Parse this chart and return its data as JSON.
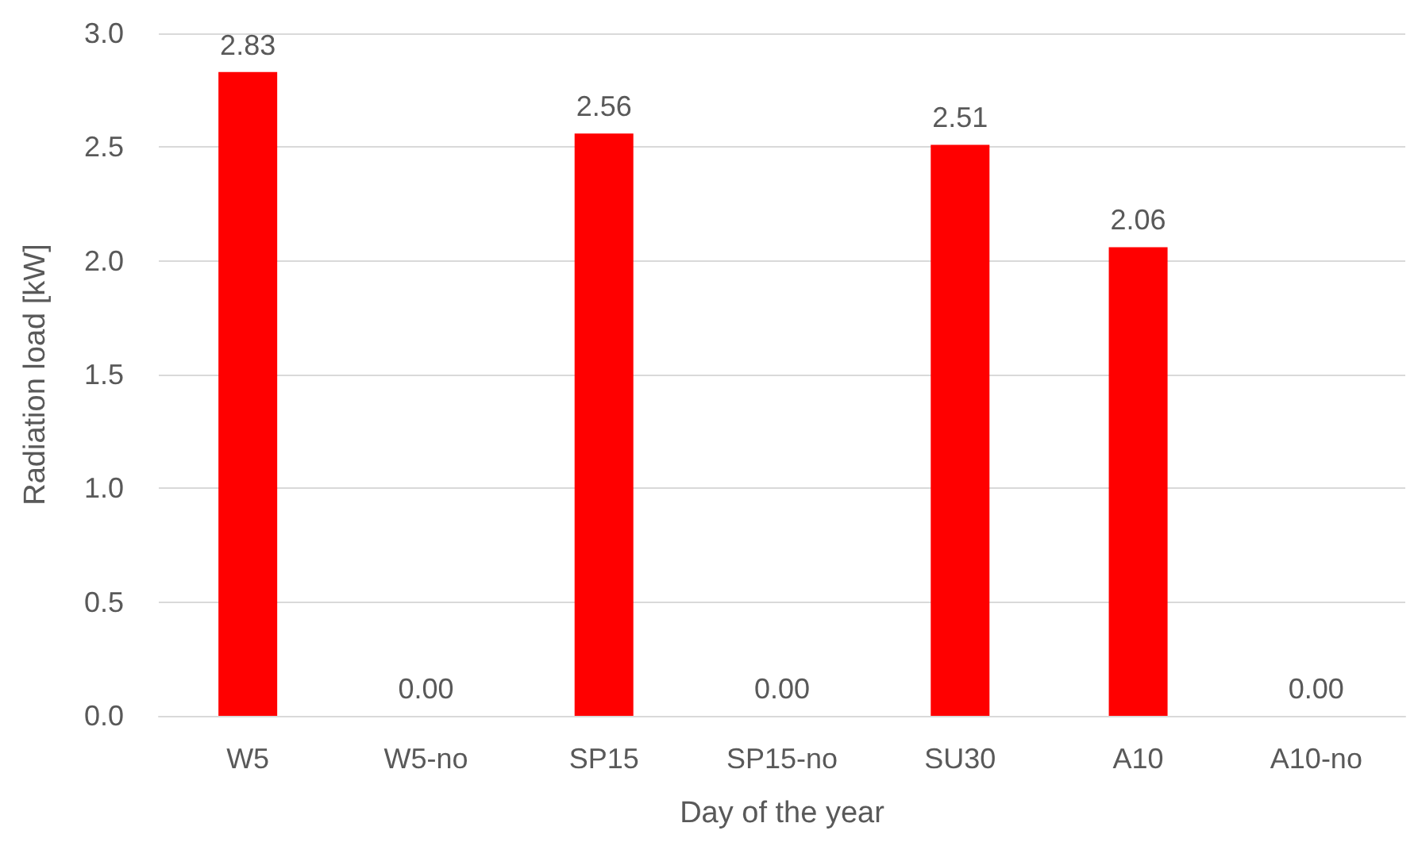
{
  "chart_data": {
    "type": "bar",
    "xlabel": "Day of the year",
    "ylabel": "Radiation load [kW]",
    "categories": [
      "W5",
      "W5-no",
      "SP15",
      "SP15-no",
      "SU30",
      "A10",
      "A10-no"
    ],
    "values": [
      2.83,
      0,
      2.56,
      0,
      2.51,
      2.06,
      0
    ],
    "value_labels": [
      "2.83",
      "0.00",
      "2.56",
      "0.00",
      "2.51",
      "2.06",
      "0.00"
    ],
    "color": "#ff0000",
    "ylim": [
      0,
      3
    ],
    "yticks": [
      {
        "value": 0,
        "label": "0.0"
      },
      {
        "value": 0.5,
        "label": "0.5"
      },
      {
        "value": 1,
        "label": "1.0"
      },
      {
        "value": 1.5,
        "label": "1.5"
      },
      {
        "value": 2,
        "label": "2.0"
      },
      {
        "value": 2.5,
        "label": "2.5"
      },
      {
        "value": 3,
        "label": "3.0"
      }
    ],
    "grid": "y"
  }
}
